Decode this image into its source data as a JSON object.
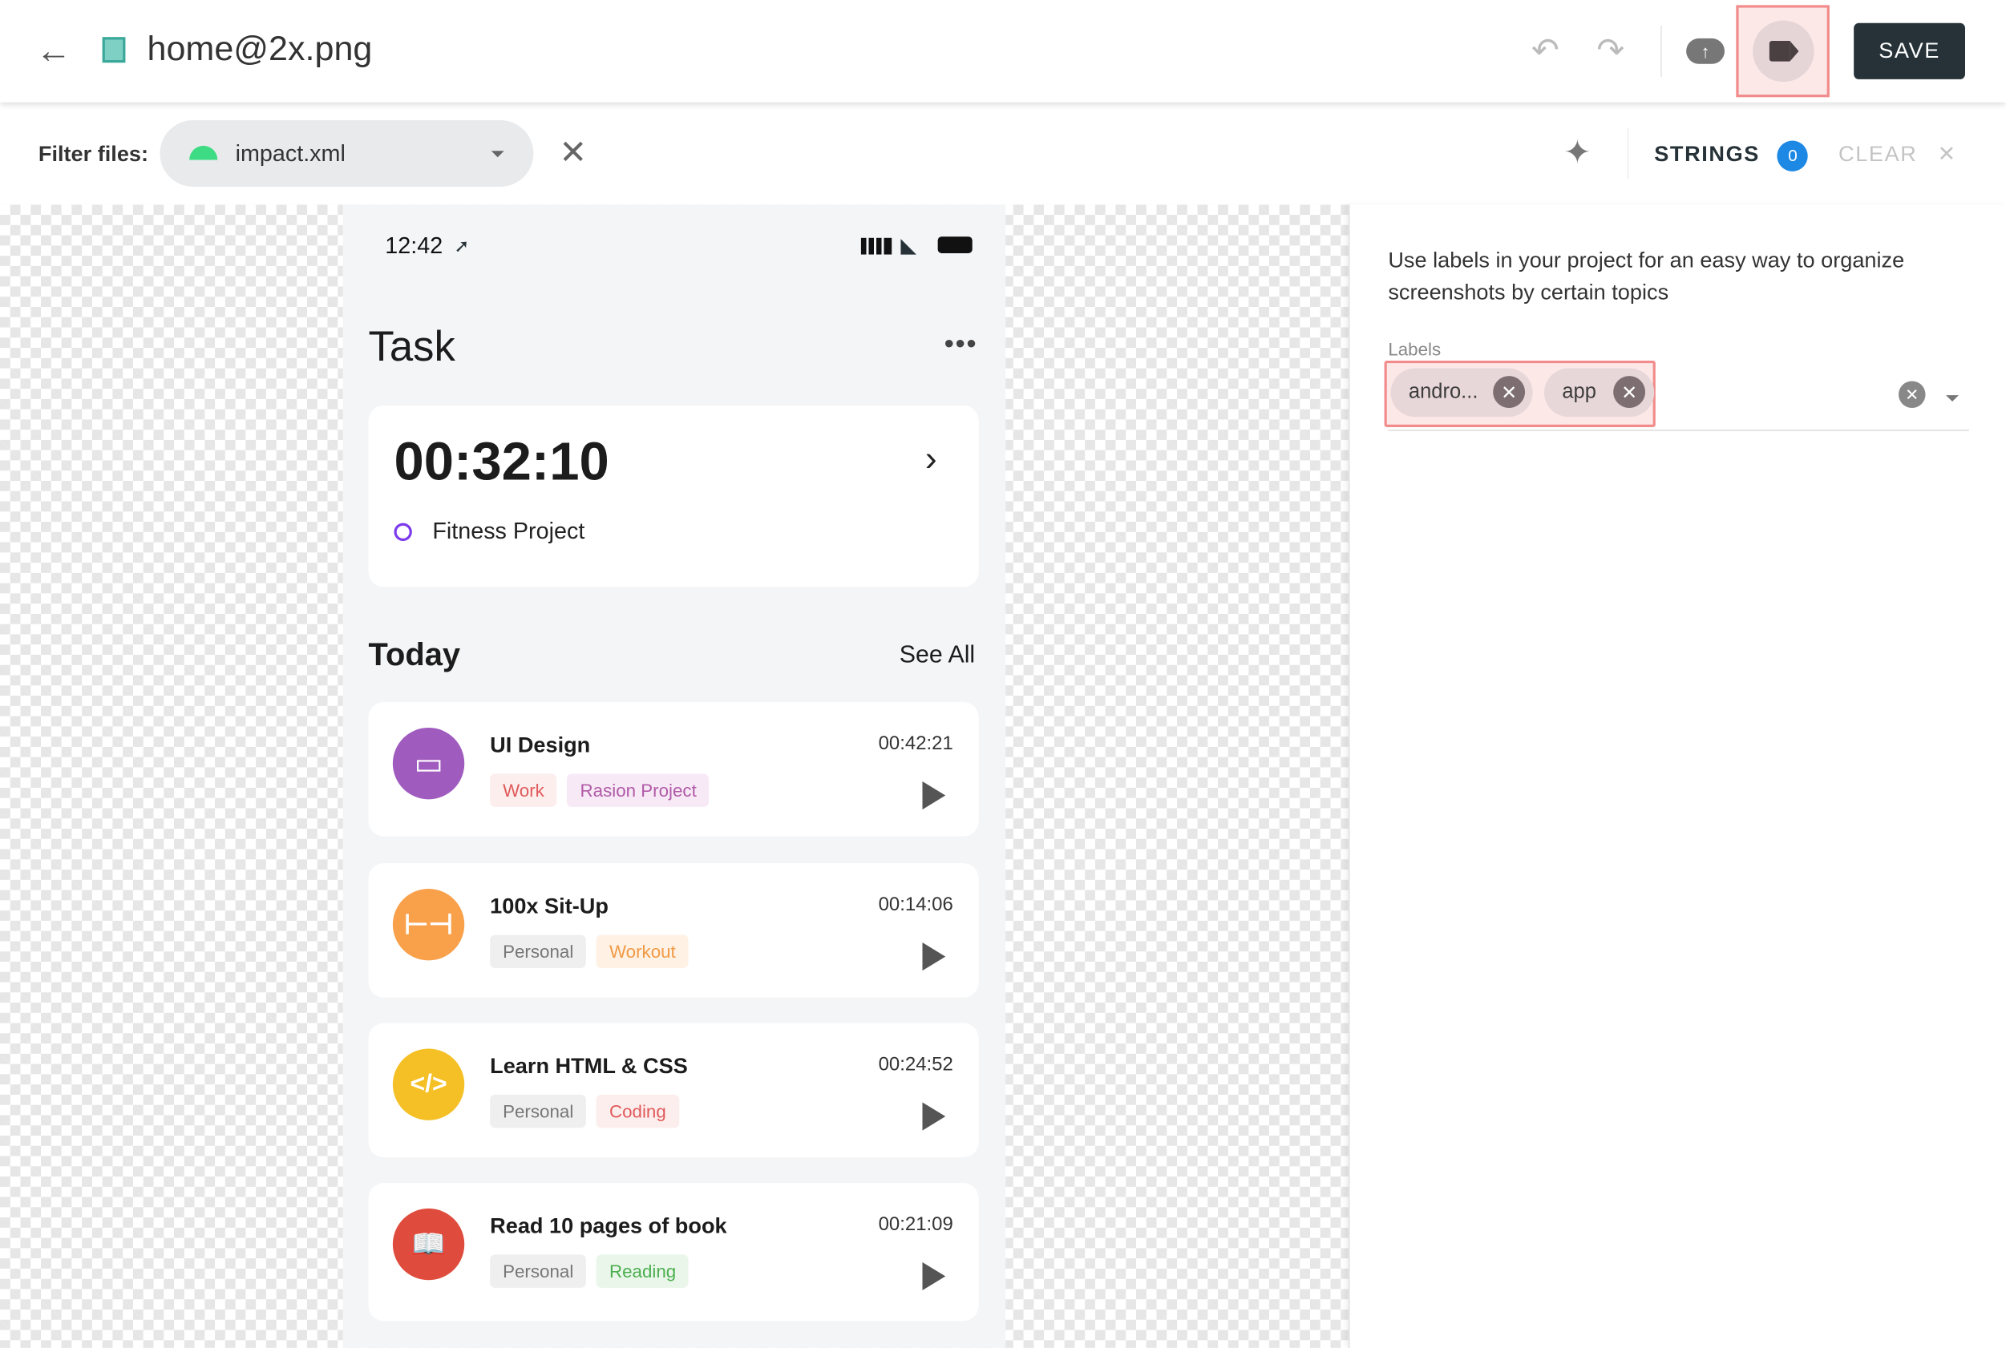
{
  "header": {
    "file_name": "home@2x.png",
    "save_label": "SAVE"
  },
  "filter": {
    "label": "Filter files:",
    "selected": "impact.xml",
    "strings_label": "STRINGS",
    "strings_count": "0",
    "clear_label": "CLEAR"
  },
  "phone": {
    "time": "12:42",
    "title": "Task",
    "timer": "00:32:10",
    "project": "Fitness Project",
    "section": "Today",
    "see_all": "See All",
    "tasks": [
      {
        "title": "UI Design",
        "time": "00:42:21",
        "tags": [
          "Work",
          "Rasion Project"
        ]
      },
      {
        "title": "100x Sit-Up",
        "time": "00:14:06",
        "tags": [
          "Personal",
          "Workout"
        ]
      },
      {
        "title": "Learn HTML & CSS",
        "time": "00:24:52",
        "tags": [
          "Personal",
          "Coding"
        ]
      },
      {
        "title": "Read 10 pages of book",
        "time": "00:21:09",
        "tags": [
          "Personal",
          "Reading"
        ]
      }
    ]
  },
  "panel": {
    "description": "Use labels in your project for an easy way to organize screenshots by certain topics",
    "labels_title": "Labels",
    "labels": [
      "andro...",
      "app"
    ]
  },
  "colors": {
    "save_bg": "#263238",
    "highlight": "#f28b8b",
    "badge": "#1e88e5"
  }
}
